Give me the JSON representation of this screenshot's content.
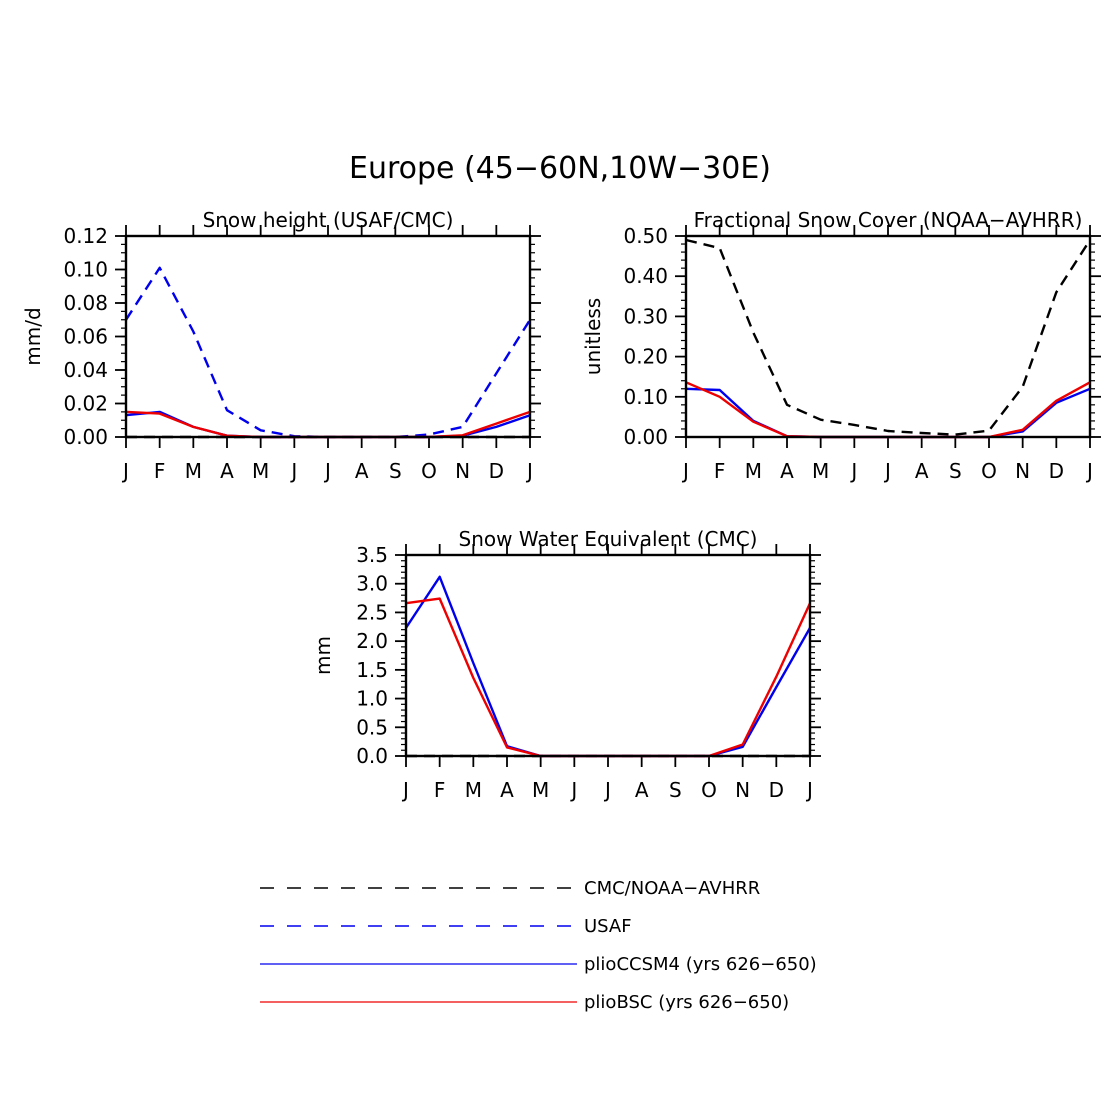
{
  "figure_title": "Europe (45−60N,10W−30E)",
  "months": [
    "J",
    "F",
    "M",
    "A",
    "M",
    "J",
    "J",
    "A",
    "S",
    "O",
    "N",
    "D",
    "J"
  ],
  "styles": {
    "obs_cmc_noaa": {
      "color": "#000000",
      "dashed": true
    },
    "obs_usaf": {
      "color": "#0000ee",
      "dashed": true
    },
    "plioCCSM4": {
      "color": "#0000ee",
      "dashed": false
    },
    "plioBSC": {
      "color": "#ee0000",
      "dashed": false
    }
  },
  "legend": [
    {
      "label": "CMC/NOAA−AVHRR",
      "style": "obs_cmc_noaa"
    },
    {
      "label": "USAF",
      "style": "obs_usaf"
    },
    {
      "label": "plioCCSM4 (yrs 626−650)",
      "style": "plioCCSM4"
    },
    {
      "label": "plioBSC (yrs 626−650)",
      "style": "plioBSC"
    }
  ],
  "chart_data": [
    {
      "type": "line",
      "title": "Snow height (USAF/CMC)",
      "ylabel": "mm/d",
      "xlabel": "",
      "ylim": [
        0,
        0.12
      ],
      "yticks": [
        0,
        0.02,
        0.04,
        0.06,
        0.08,
        0.1,
        0.12
      ],
      "ytick_labels": [
        "0.00",
        "0.02",
        "0.04",
        "0.06",
        "0.08",
        "0.10",
        "0.12"
      ],
      "yminor_step": 0.005,
      "series": [
        {
          "name": "USAF",
          "style": "obs_usaf",
          "values": [
            0.07,
            0.101,
            0.063,
            0.016,
            0.004,
            0.0005,
            0.0,
            0.0,
            0.0,
            0.0015,
            0.006,
            0.038,
            0.07
          ]
        },
        {
          "name": "CMC/NOAA-AVHRR",
          "style": "obs_cmc_noaa",
          "values": [
            0,
            0,
            0,
            0,
            0,
            0,
            0,
            0,
            0,
            0,
            0,
            0,
            0
          ]
        },
        {
          "name": "plioCCSM4 (yrs 626-650)",
          "style": "plioCCSM4",
          "values": [
            0.013,
            0.015,
            0.006,
            0.0008,
            0.0,
            0.0,
            0.0,
            0.0,
            0.0,
            0.0,
            0.0008,
            0.006,
            0.013
          ]
        },
        {
          "name": "plioBSC (yrs 626-650)",
          "style": "plioBSC",
          "values": [
            0.015,
            0.014,
            0.006,
            0.0008,
            0.0,
            0.0,
            0.0,
            0.0,
            0.0,
            0.0,
            0.001,
            0.008,
            0.015
          ]
        }
      ]
    },
    {
      "type": "line",
      "title": "Fractional Snow Cover (NOAA−AVHRR)",
      "ylabel": "unitless",
      "xlabel": "",
      "ylim": [
        0,
        0.5
      ],
      "yticks": [
        0,
        0.1,
        0.2,
        0.3,
        0.4,
        0.5
      ],
      "ytick_labels": [
        "0.00",
        "0.10",
        "0.20",
        "0.30",
        "0.40",
        "0.50"
      ],
      "yminor_step": 0.02,
      "series": [
        {
          "name": "CMC/NOAA-AVHRR",
          "style": "obs_cmc_noaa",
          "values": [
            0.49,
            0.47,
            0.26,
            0.08,
            0.043,
            0.03,
            0.015,
            0.01,
            0.006,
            0.016,
            0.125,
            0.36,
            0.49
          ]
        },
        {
          "name": "plioCCSM4 (yrs 626-650)",
          "style": "plioCCSM4",
          "values": [
            0.12,
            0.117,
            0.04,
            0.002,
            0.0,
            0.0,
            0.0,
            0.0,
            0.0,
            0.0,
            0.014,
            0.085,
            0.12
          ]
        },
        {
          "name": "plioBSC (yrs 626-650)",
          "style": "plioBSC",
          "values": [
            0.136,
            0.1,
            0.038,
            0.002,
            0.0,
            0.0,
            0.0,
            0.0,
            0.0,
            0.0,
            0.018,
            0.09,
            0.136
          ]
        }
      ]
    },
    {
      "type": "line",
      "title": "Snow Water Equivalent (CMC)",
      "ylabel": "mm",
      "xlabel": "",
      "ylim": [
        0,
        3.5
      ],
      "yticks": [
        0,
        0.5,
        1.0,
        1.5,
        2.0,
        2.5,
        3.0,
        3.5
      ],
      "ytick_labels": [
        "0.0",
        "0.5",
        "1.0",
        "1.5",
        "2.0",
        "2.5",
        "3.0",
        "3.5"
      ],
      "yminor_step": 0.1,
      "series": [
        {
          "name": "CMC/NOAA-AVHRR",
          "style": "obs_cmc_noaa",
          "values": [
            0,
            0,
            0,
            0,
            0,
            0,
            0,
            0,
            0,
            0,
            0,
            0,
            0
          ]
        },
        {
          "name": "plioCCSM4 (yrs 626-650)",
          "style": "plioCCSM4",
          "values": [
            2.23,
            3.12,
            1.62,
            0.17,
            0.0,
            0.0,
            0.0,
            0.0,
            0.0,
            0.0,
            0.16,
            1.2,
            2.23
          ]
        },
        {
          "name": "plioBSC (yrs 626-650)",
          "style": "plioBSC",
          "values": [
            2.66,
            2.74,
            1.36,
            0.15,
            0.0,
            0.0,
            0.0,
            0.0,
            0.0,
            0.0,
            0.2,
            1.38,
            2.66
          ]
        }
      ]
    }
  ]
}
